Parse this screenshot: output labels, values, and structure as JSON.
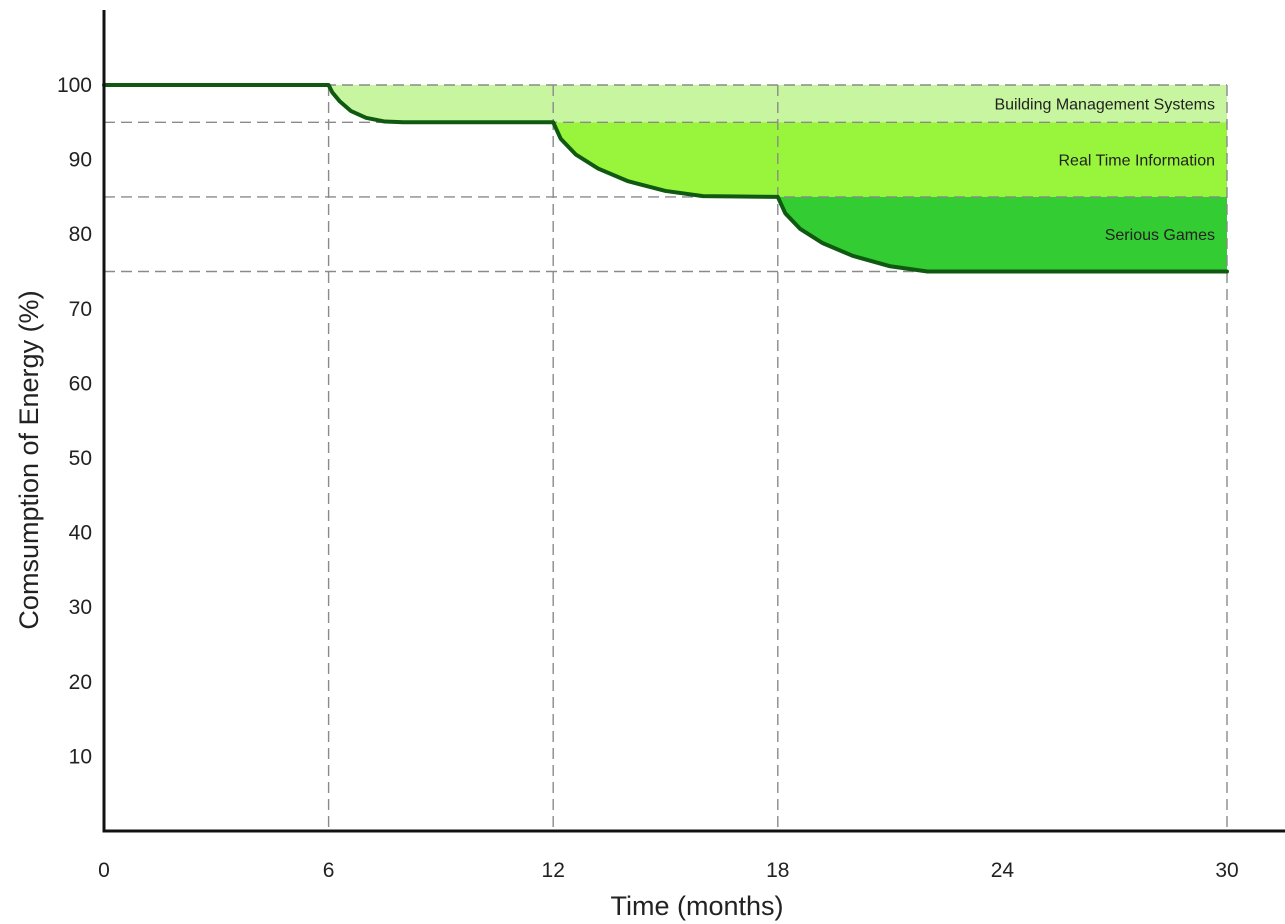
{
  "chart_data": {
    "type": "area",
    "title": "",
    "xlabel": "Time (months)",
    "ylabel": "Comsumption of Energy (%)",
    "xlim": [
      0,
      30
    ],
    "ylim": [
      0,
      110
    ],
    "x_ticks": [
      0,
      6,
      12,
      18,
      24,
      30
    ],
    "y_ticks": [
      10,
      20,
      30,
      40,
      50,
      60,
      70,
      80,
      90,
      100
    ],
    "x_tick_labels": [
      "0",
      "6",
      "12",
      "18",
      "24",
      "30"
    ],
    "y_tick_labels": [
      "10",
      "20",
      "30",
      "40",
      "50",
      "60",
      "70",
      "80",
      "90",
      "100"
    ],
    "grid": false,
    "reference_lines": {
      "horizontal": [
        100,
        95,
        85,
        75
      ],
      "vertical": [
        6,
        12,
        18,
        30
      ]
    },
    "series": [
      {
        "name": "Consumption",
        "color": "#0f5a10",
        "x": [
          0,
          6,
          6.1,
          6.3,
          6.6,
          7,
          7.5,
          8,
          12,
          12.2,
          12.6,
          13.2,
          14,
          15,
          16,
          18,
          18.2,
          18.6,
          19.2,
          20,
          21,
          22,
          30
        ],
        "y": [
          100,
          100,
          99,
          97.8,
          96.5,
          95.6,
          95.1,
          95,
          95,
          92.8,
          90.7,
          88.8,
          87.1,
          85.8,
          85.1,
          85,
          82.8,
          80.7,
          78.8,
          77.1,
          75.7,
          75,
          75
        ]
      }
    ],
    "bands": [
      {
        "label": "Building Management Systems",
        "from": 95,
        "to": 100,
        "x_start": 6,
        "x_end": 30,
        "color": "#c8f5a0"
      },
      {
        "label": "Real Time Information",
        "from": 85,
        "to": 95,
        "x_start": 12,
        "x_end": 30,
        "color": "#99f53c"
      },
      {
        "label": "Serious Games",
        "from": 75,
        "to": 85,
        "x_start": 18,
        "x_end": 30,
        "color": "#33cc33"
      }
    ]
  }
}
